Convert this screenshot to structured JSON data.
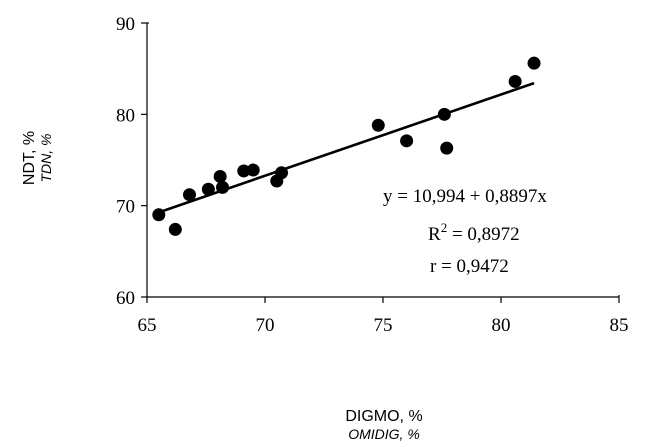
{
  "chart_data": {
    "type": "scatter",
    "xlabel": "DIGMO, %",
    "xlabel_alt": "OMIDIG,  %",
    "ylabel": "NDT, %",
    "ylabel_alt": "TDN,  %",
    "xlim": [
      65,
      85
    ],
    "ylim": [
      60,
      90
    ],
    "x_ticks": [
      "65",
      "70",
      "75",
      "80",
      "85"
    ],
    "y_ticks": [
      "60",
      "70",
      "80",
      "90"
    ],
    "grid": false,
    "legend": "none",
    "points_x": [
      65.5,
      66.2,
      66.8,
      67.6,
      68.1,
      68.2,
      69.1,
      69.5,
      70.5,
      70.7,
      74.8,
      76.0,
      77.6,
      77.7,
      80.6,
      81.4
    ],
    "points_y": [
      69.0,
      67.4,
      71.2,
      71.8,
      73.2,
      72.0,
      73.8,
      73.9,
      72.7,
      73.6,
      78.8,
      77.1,
      80.0,
      76.3,
      83.6,
      85.6
    ],
    "trendline": {
      "intercept": 10.994,
      "slope": 0.8897,
      "x_range": [
        65.5,
        81.4
      ]
    },
    "annotations": {
      "equation": "y = 10,994 + 0,8897x",
      "r2_prefix": "R",
      "r2_sup": "2",
      "r2_value": " = 0,8972",
      "r": "r  = 0,9472"
    },
    "colors": {
      "marker": "#000000",
      "line": "#000000",
      "axis": "#000000"
    }
  }
}
